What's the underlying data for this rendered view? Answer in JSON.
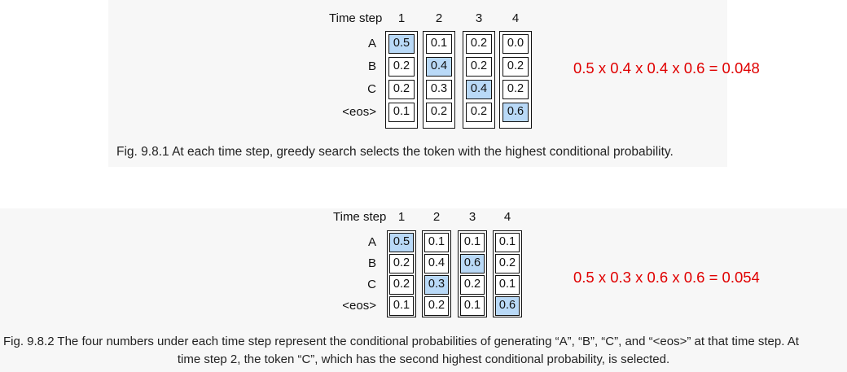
{
  "figures": [
    {
      "header_label": "Time step",
      "steps": [
        "1",
        "2",
        "3",
        "4"
      ],
      "rows": [
        "A",
        "B",
        "C",
        "<eos>"
      ],
      "columns": [
        {
          "values": [
            "0.5",
            "0.2",
            "0.2",
            "0.1"
          ],
          "selected_index": 0
        },
        {
          "values": [
            "0.1",
            "0.4",
            "0.3",
            "0.2"
          ],
          "selected_index": 1
        },
        {
          "values": [
            "0.2",
            "0.2",
            "0.4",
            "0.2"
          ],
          "selected_index": 2
        },
        {
          "values": [
            "0.0",
            "0.2",
            "0.2",
            "0.6"
          ],
          "selected_index": 3
        }
      ],
      "equation": "0.5 x 0.4 x 0.4 x 0.6 = 0.048",
      "caption": "Fig. 9.8.1  At each time step, greedy search selects the token with the highest conditional probability."
    },
    {
      "header_label": "Time step",
      "steps": [
        "1",
        "2",
        "3",
        "4"
      ],
      "rows": [
        "A",
        "B",
        "C",
        "<eos>"
      ],
      "columns": [
        {
          "values": [
            "0.5",
            "0.2",
            "0.2",
            "0.1"
          ],
          "selected_index": 0
        },
        {
          "values": [
            "0.1",
            "0.4",
            "0.3",
            "0.2"
          ],
          "selected_index": 2
        },
        {
          "values": [
            "0.1",
            "0.6",
            "0.2",
            "0.1"
          ],
          "selected_index": 1
        },
        {
          "values": [
            "0.1",
            "0.2",
            "0.1",
            "0.6"
          ],
          "selected_index": 3
        }
      ],
      "equation": "0.5 x 0.3 x 0.6 x 0.6 = 0.054",
      "caption_line1": "Fig. 9.8.2  The four numbers under each time step represent the conditional probabilities of generating “A”, “B”, “C”, and “<eos>” at that time step. At",
      "caption_line2": "time step 2, the token “C”, which has the second highest conditional probability, is selected."
    }
  ],
  "colors": {
    "selected_cell": "#b9d9f7",
    "equation": "#e00000",
    "panel_background": "#f7f7f7"
  }
}
